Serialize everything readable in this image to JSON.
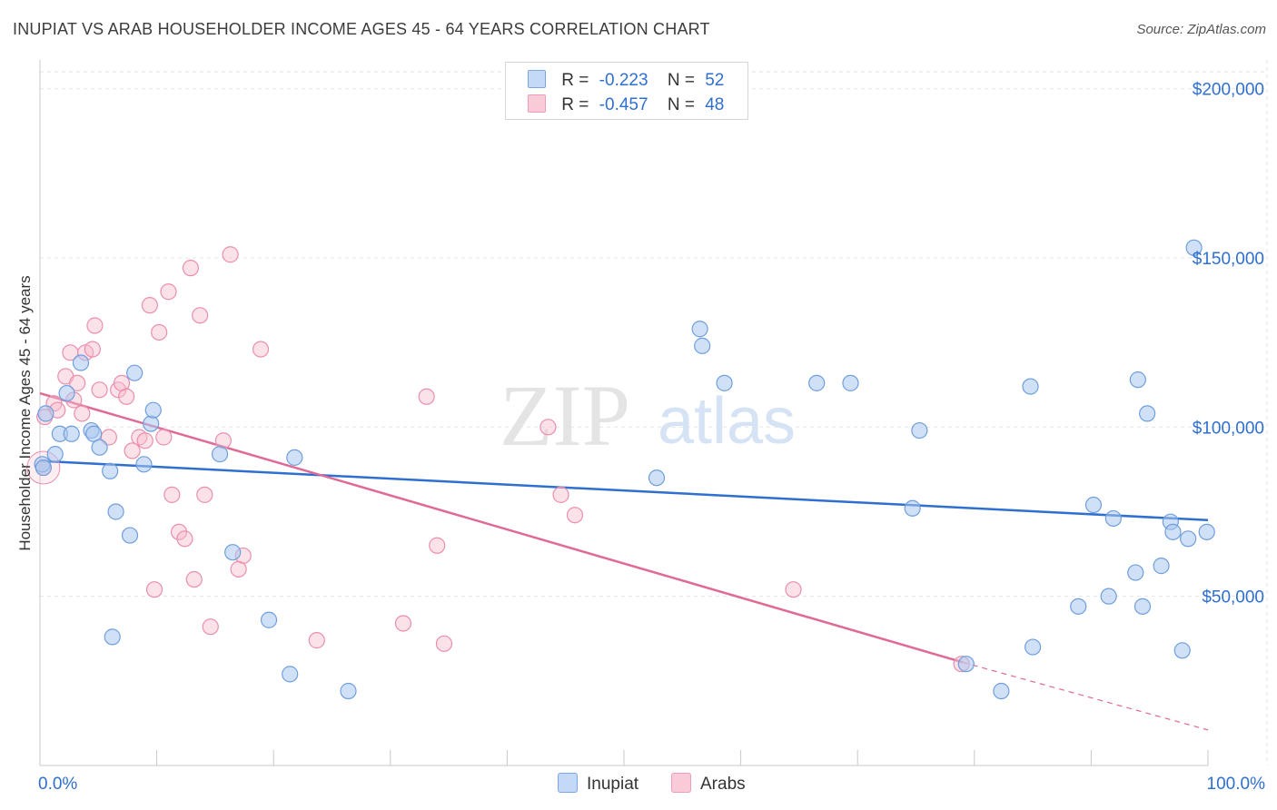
{
  "header": {
    "title": "INUPIAT VS ARAB HOUSEHOLDER INCOME AGES 45 - 64 YEARS CORRELATION CHART",
    "source": "Source: ZipAtlas.com"
  },
  "legend": {
    "inupiat": {
      "r_label": "R =",
      "r_value": "-0.223",
      "n_label": "N =",
      "n_value": "52"
    },
    "arabs": {
      "r_label": "R =",
      "r_value": "-0.457",
      "n_label": "N =",
      "n_value": "48"
    }
  },
  "bottom_legend": {
    "inupiat": "Inupiat",
    "arabs": "Arabs"
  },
  "watermark": {
    "zip": "ZIP",
    "atlas": "atlas"
  },
  "colors": {
    "inupiat_fill": "#a9c7f0",
    "inupiat_stroke": "#6f9fdc",
    "inupiat_line": "#2f6fd0",
    "arabs_fill": "#f7bccd",
    "arabs_stroke": "#ea8fae",
    "arabs_line": "#e06a96",
    "axis_label": "#2e6fd0",
    "grid": "#e6e6e6"
  },
  "chart_data": {
    "type": "scatter",
    "title": "INUPIAT VS ARAB HOUSEHOLDER INCOME AGES 45 - 64 YEARS CORRELATION CHART",
    "xlabel": "",
    "ylabel": "Householder Income Ages 45 - 64 years",
    "xlim": [
      0,
      100
    ],
    "ylim": [
      0,
      205000
    ],
    "x_tick_labels": [
      "0.0%",
      "100.0%"
    ],
    "y_ticks": [
      50000,
      100000,
      150000,
      200000
    ],
    "y_tick_labels": [
      "$50,000",
      "$100,000",
      "$150,000",
      "$200,000"
    ],
    "grid": true,
    "legend_position": "top-center",
    "series": [
      {
        "name": "Inupiat",
        "r": -0.223,
        "n": 52,
        "trend": {
          "x": [
            0,
            100
          ],
          "y": [
            90000,
            72500
          ],
          "extrapolated_to": 100
        },
        "points": [
          [
            0.2,
            89000
          ],
          [
            0.5,
            104000
          ],
          [
            1.3,
            92000
          ],
          [
            1.7,
            98000
          ],
          [
            2.3,
            110000
          ],
          [
            2.7,
            98000
          ],
          [
            3.5,
            119000
          ],
          [
            4.4,
            99000
          ],
          [
            4.6,
            98000
          ],
          [
            5.1,
            94000
          ],
          [
            6.0,
            87000
          ],
          [
            6.5,
            75000
          ],
          [
            7.7,
            68000
          ],
          [
            8.1,
            116000
          ],
          [
            8.9,
            89000
          ],
          [
            9.5,
            101000
          ],
          [
            9.7,
            105000
          ],
          [
            6.2,
            38000
          ],
          [
            15.4,
            92000
          ],
          [
            16.5,
            63000
          ],
          [
            19.6,
            43000
          ],
          [
            21.4,
            27000
          ],
          [
            21.8,
            91000
          ],
          [
            26.4,
            22000
          ],
          [
            52.8,
            85000
          ],
          [
            56.5,
            129000
          ],
          [
            56.7,
            124000
          ],
          [
            58.6,
            113000
          ],
          [
            66.5,
            113000
          ],
          [
            69.4,
            113000
          ],
          [
            75.3,
            99000
          ],
          [
            74.7,
            76000
          ],
          [
            79.3,
            30000
          ],
          [
            82.3,
            22000
          ],
          [
            84.8,
            112000
          ],
          [
            85.0,
            35000
          ],
          [
            88.9,
            47000
          ],
          [
            90.2,
            77000
          ],
          [
            91.5,
            50000
          ],
          [
            91.9,
            73000
          ],
          [
            93.8,
            57000
          ],
          [
            94.0,
            114000
          ],
          [
            94.4,
            47000
          ],
          [
            94.8,
            104000
          ],
          [
            96.0,
            59000
          ],
          [
            96.8,
            72000
          ],
          [
            97.0,
            69000
          ],
          [
            97.8,
            34000
          ],
          [
            98.3,
            67000
          ],
          [
            98.8,
            153000
          ],
          [
            99.9,
            69000
          ],
          [
            0.3,
            88000
          ]
        ]
      },
      {
        "name": "Arabs",
        "r": -0.457,
        "n": 48,
        "trend": {
          "x": [
            0,
            79
          ],
          "y": [
            110000,
            30500
          ],
          "dashed_to": {
            "x": 100,
            "y": 10500
          }
        },
        "points": [
          [
            0.3,
            88000
          ],
          [
            0.4,
            103000
          ],
          [
            1.2,
            107000
          ],
          [
            1.5,
            105000
          ],
          [
            2.2,
            115000
          ],
          [
            2.6,
            122000
          ],
          [
            2.9,
            108000
          ],
          [
            3.2,
            113000
          ],
          [
            3.6,
            104000
          ],
          [
            3.9,
            122000
          ],
          [
            4.5,
            123000
          ],
          [
            4.7,
            130000
          ],
          [
            5.1,
            111000
          ],
          [
            5.9,
            97000
          ],
          [
            6.7,
            111000
          ],
          [
            7.0,
            113000
          ],
          [
            7.4,
            109000
          ],
          [
            7.9,
            93000
          ],
          [
            8.5,
            97000
          ],
          [
            9.0,
            96000
          ],
          [
            9.4,
            136000
          ],
          [
            10.2,
            128000
          ],
          [
            10.6,
            97000
          ],
          [
            11.0,
            140000
          ],
          [
            11.3,
            80000
          ],
          [
            11.9,
            69000
          ],
          [
            12.4,
            67000
          ],
          [
            12.9,
            147000
          ],
          [
            13.2,
            55000
          ],
          [
            13.7,
            133000
          ],
          [
            14.1,
            80000
          ],
          [
            14.6,
            41000
          ],
          [
            15.7,
            96000
          ],
          [
            16.3,
            151000
          ],
          [
            17.4,
            62000
          ],
          [
            17.0,
            58000
          ],
          [
            18.9,
            123000
          ],
          [
            9.8,
            52000
          ],
          [
            23.7,
            37000
          ],
          [
            31.1,
            42000
          ],
          [
            33.1,
            109000
          ],
          [
            34.0,
            65000
          ],
          [
            34.6,
            36000
          ],
          [
            43.5,
            100000
          ],
          [
            44.6,
            80000
          ],
          [
            45.8,
            74000
          ],
          [
            64.5,
            52000
          ],
          [
            78.9,
            30000
          ]
        ]
      }
    ]
  }
}
